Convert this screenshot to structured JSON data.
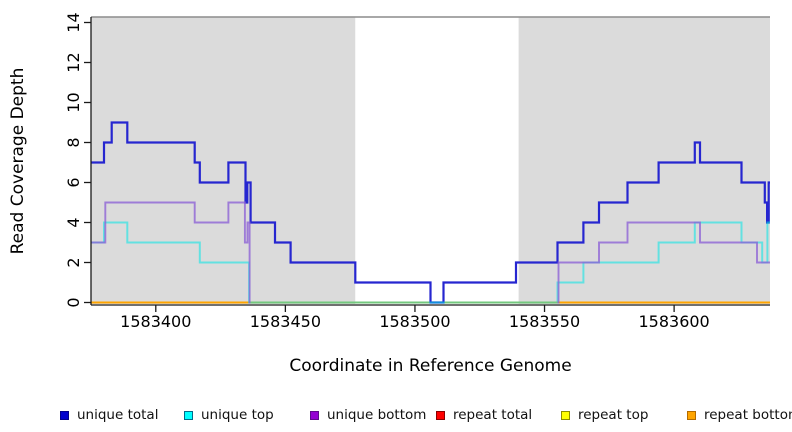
{
  "chart_data": {
    "type": "step-line",
    "title": "",
    "xlabel": "Coordinate in Reference Genome",
    "ylabel": "Read Coverage Depth",
    "xlim": [
      1583375,
      1583637
    ],
    "ylim": [
      0,
      14
    ],
    "x_ticks": [
      1583400,
      1583450,
      1583500,
      1583550,
      1583600
    ],
    "y_ticks": [
      0,
      2,
      4,
      6,
      8,
      10,
      12,
      14
    ],
    "grid": false,
    "panel_border_color": "#8C8C8C",
    "axis_color": "#1a1a1a",
    "background_regions": [
      {
        "kind": "shaded-repeat-region",
        "x_start": 1583375,
        "x_end": 1583477,
        "color": "#DBDBDB"
      },
      {
        "kind": "unshaded-unique-region",
        "x_start": 1583477,
        "x_end": 1583540,
        "color": "#FFFFFF"
      },
      {
        "kind": "shaded-repeat-region",
        "x_start": 1583540,
        "x_end": 1583637,
        "color": "#DBDBDB"
      }
    ],
    "series": [
      {
        "name": "repeat total",
        "color": "#FF0000",
        "opacity": 1,
        "width": 2,
        "segments": [
          {
            "points": [
              [
                1583375,
                0
              ]
            ],
            "x_end": 1583637
          }
        ]
      },
      {
        "name": "repeat top",
        "color": "#FFFF00",
        "opacity": 1,
        "width": 2,
        "segments": [
          {
            "points": [
              [
                1583375,
                0
              ]
            ],
            "x_end": 1583637
          }
        ]
      },
      {
        "name": "repeat bottom",
        "color": "#FFA500",
        "opacity": 1,
        "width": 2,
        "segments": [
          {
            "points": [
              [
                1583375,
                0
              ]
            ],
            "x_end": 1583637
          }
        ]
      },
      {
        "name": "unique total",
        "color": "#2626D0",
        "opacity": 1,
        "width": 2.2,
        "segments": [
          {
            "points": [
              [
                1583375,
                7
              ],
              [
                1583380,
                8
              ],
              [
                1583383,
                9
              ],
              [
                1583389,
                8
              ],
              [
                1583415,
                7
              ],
              [
                1583417,
                6
              ],
              [
                1583428,
                7
              ],
              [
                1583434.6,
                5
              ],
              [
                1583435.3,
                6
              ],
              [
                1583436.6,
                4
              ],
              [
                1583446,
                3
              ],
              [
                1583452,
                2
              ],
              [
                1583477,
                1
              ],
              [
                1583506,
                0
              ],
              [
                1583511,
                1
              ],
              [
                1583539,
                2
              ],
              [
                1583555,
                3
              ],
              [
                1583565,
                4
              ],
              [
                1583571,
                5
              ],
              [
                1583582,
                6
              ],
              [
                1583594,
                7
              ],
              [
                1583608,
                8
              ],
              [
                1583610,
                7
              ],
              [
                1583626,
                6
              ],
              [
                1583635,
                5
              ],
              [
                1583635.9,
                4
              ],
              [
                1583636.5,
                6
              ]
            ],
            "x_end": 1583637
          }
        ]
      },
      {
        "name": "unique top",
        "color": "#00E5E5",
        "opacity": 0.55,
        "width": 2,
        "segments": [
          {
            "points": [
              [
                1583375,
                3
              ],
              [
                1583380,
                4
              ],
              [
                1583389,
                3
              ],
              [
                1583417,
                2
              ],
              [
                1583436,
                0
              ],
              [
                1583555,
                1
              ],
              [
                1583565,
                2
              ],
              [
                1583594,
                3
              ],
              [
                1583608,
                4
              ],
              [
                1583626,
                3
              ],
              [
                1583634,
                2
              ],
              [
                1583636,
                4
              ]
            ],
            "x_end": 1583637
          }
        ]
      },
      {
        "name": "unique bottom",
        "color": "#8A5CD6",
        "opacity": 0.75,
        "width": 1.9,
        "segments": [
          {
            "points": [
              [
                1583375,
                3
              ],
              [
                1583380.5,
                5
              ],
              [
                1583415,
                4
              ],
              [
                1583428,
                5
              ],
              [
                1583434.4,
                3
              ],
              [
                1583435.4,
                4
              ],
              [
                1583436.2,
                0
              ]
            ],
            "x_end": 1583436.5
          },
          {
            "points": [
              [
                1583555,
                0
              ],
              [
                1583555.4,
                2
              ],
              [
                1583571,
                3
              ],
              [
                1583582,
                4
              ],
              [
                1583610,
                3
              ],
              [
                1583632,
                2
              ]
            ],
            "x_end": 1583637
          }
        ]
      }
    ],
    "legend": [
      {
        "label": "unique total",
        "fill": "#0000CD",
        "border": "#00008B"
      },
      {
        "label": "unique top",
        "fill": "#00FFFF",
        "border": "#006B8B"
      },
      {
        "label": "unique bottom",
        "fill": "#9400D3",
        "border": "#5E0A8C"
      },
      {
        "label": "repeat total",
        "fill": "#FF0000",
        "border": "#8B0000"
      },
      {
        "label": "repeat top",
        "fill": "#FFFF00",
        "border": "#8C8C00"
      },
      {
        "label": "repeat bottom",
        "fill": "#FFA500",
        "border": "#B36B00"
      }
    ]
  }
}
